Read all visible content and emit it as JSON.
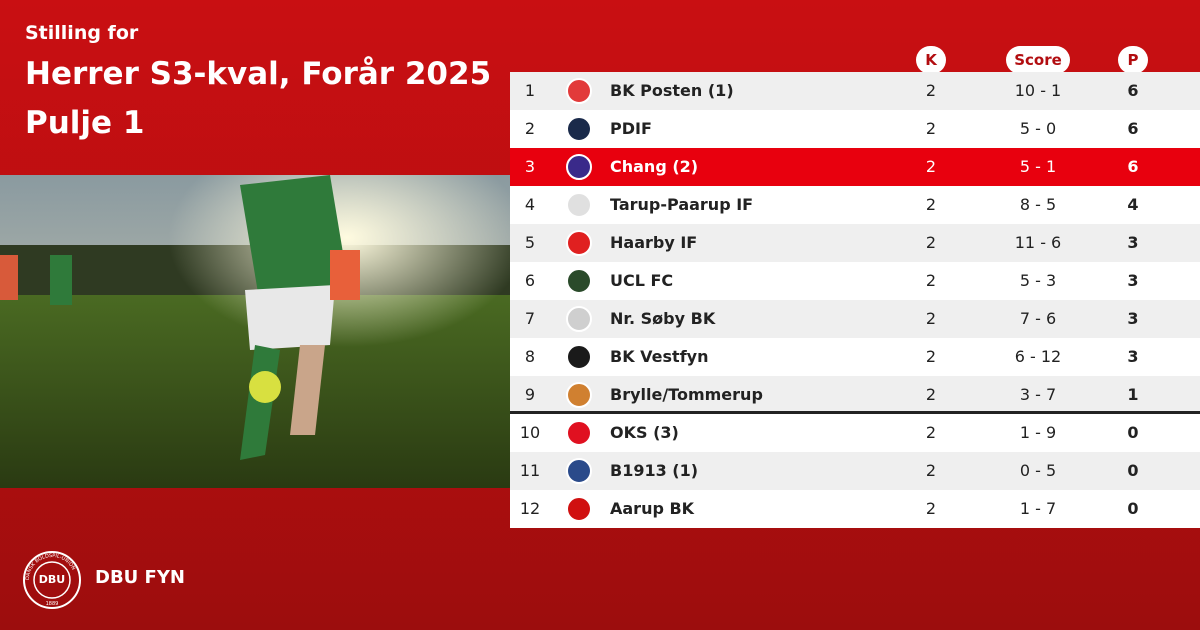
{
  "header": {
    "kicker": "Stilling for",
    "title": "Herrer S3-kval, Forår 2025",
    "subtitle": "Pulje 1"
  },
  "table": {
    "columns": [
      "K",
      "Score",
      "P"
    ],
    "rows": [
      [
        1,
        "BK Posten (1)",
        2,
        "10 - 1",
        6
      ],
      [
        2,
        "PDIF",
        2,
        "5 - 0",
        6
      ],
      [
        3,
        "Chang (2)",
        2,
        "5 - 1",
        6
      ],
      [
        4,
        "Tarup-Paarup IF",
        2,
        "8 - 5",
        4
      ],
      [
        5,
        "Haarby IF",
        2,
        "11 - 6",
        3
      ],
      [
        6,
        "UCL FC",
        2,
        "5 - 3",
        3
      ],
      [
        7,
        "Nr. Søby BK",
        2,
        "7 - 6",
        3
      ],
      [
        8,
        "BK Vestfyn",
        2,
        "6 - 12",
        3
      ],
      [
        9,
        "Brylle/Tommerup",
        2,
        "3 - 7",
        1
      ],
      [
        10,
        "OKS (3)",
        2,
        "1 - 9",
        0
      ],
      [
        11,
        "B1913 (1)",
        2,
        "0 - 5",
        0
      ],
      [
        12,
        "Aarup BK",
        2,
        "1 - 7",
        0
      ]
    ]
  },
  "footer": {
    "logo": "DBU",
    "logo_ring": "DANSK BOLDSPIL-UNION",
    "logo_year": "1889",
    "brand": "DBU FYN"
  }
}
